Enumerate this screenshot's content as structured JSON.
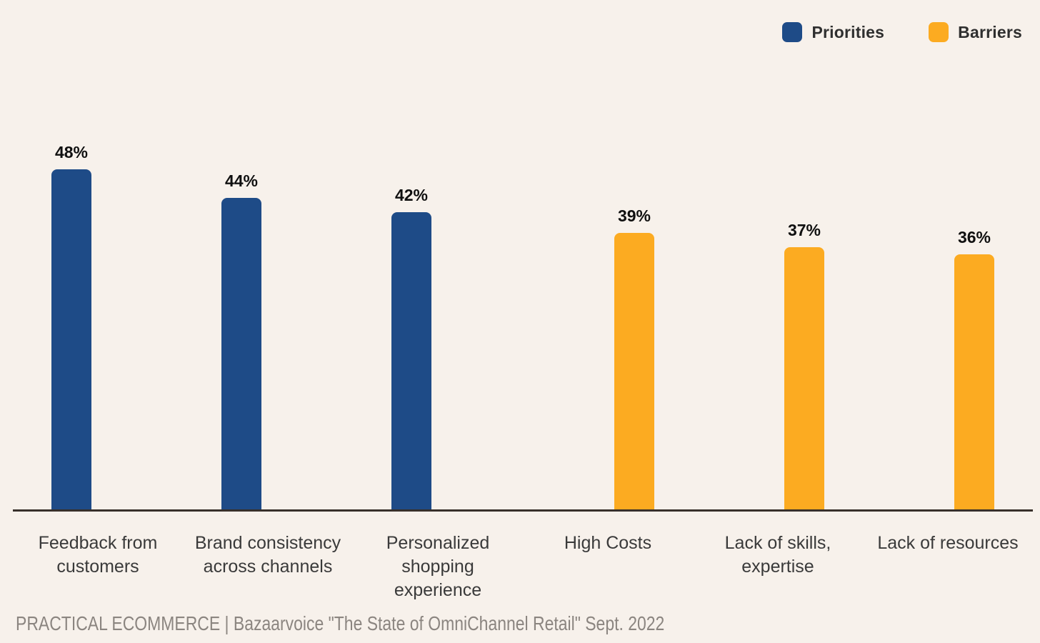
{
  "background_color": "#F7F1EB",
  "legend": {
    "position": "top-right",
    "items": [
      {
        "label": "Priorities",
        "color": "#1E4B87"
      },
      {
        "label": "Barriers",
        "color": "#FCAB21"
      }
    ]
  },
  "chart_data": {
    "type": "bar",
    "title": "",
    "xlabel": "",
    "ylabel": "",
    "categories": [
      "Feedback from customers",
      "Brand consistency across channels",
      "Personalized shopping experience",
      "High Costs",
      "Lack of skills, expertise",
      "Lack of resources"
    ],
    "series": [
      {
        "name": "Priorities",
        "color": "#1E4B87",
        "values": [
          48,
          44,
          42,
          null,
          null,
          null
        ]
      },
      {
        "name": "Barriers",
        "color": "#FCAB21",
        "values": [
          null,
          null,
          null,
          39,
          37,
          36
        ]
      }
    ],
    "value_labels": [
      "48%",
      "44%",
      "42%",
      "39%",
      "37%",
      "36%"
    ],
    "value_suffix": "%",
    "ylim": [
      0,
      50
    ],
    "grid": false,
    "axis_color": "#38302B",
    "legend_position": "top-right"
  },
  "footer": {
    "source": "PRACTICAL ECOMMERCE | Bazaarvoice \"The State of OmniChannel Retail\" Sept. 2022"
  }
}
